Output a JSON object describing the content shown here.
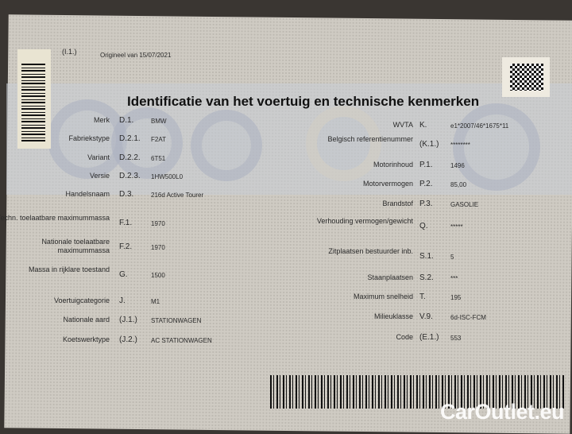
{
  "header": {
    "ref": "(I.1.)",
    "original": "Origineel van 15/07/2021",
    "title": "Identificatie van het voertuig en technische kenmerken"
  },
  "left": [
    {
      "label": "Merk",
      "code": "D.1.",
      "value": "BMW"
    },
    {
      "label": "Fabriekstype",
      "code": "D.2.1.",
      "value": "F2AT"
    },
    {
      "label": "Variant",
      "code": "D.2.2.",
      "value": "6T51"
    },
    {
      "label": "Versie",
      "code": "D.2.3.",
      "value": "1HW500L0"
    },
    {
      "label": "Handelsnaam",
      "code": "D.3.",
      "value": "216d Active Tourer"
    },
    {
      "label": "Techn. toelaatbare maximummassa",
      "code": "F.1.",
      "value": "1970"
    },
    {
      "label": "Nationale toelaatbare maximummassa",
      "code": "F.2.",
      "value": "1970"
    },
    {
      "label": "Massa in rijklare toestand",
      "code": "G.",
      "value": "1500"
    },
    {
      "label": "Voertuigcategorie",
      "code": "J.",
      "value": "M1"
    },
    {
      "label": "Nationale aard",
      "code": "(J.1.)",
      "value": "STATIONWAGEN"
    },
    {
      "label": "Koetswerktype",
      "code": "(J.2.)",
      "value": "AC STATIONWAGEN"
    }
  ],
  "right": [
    {
      "label": "WVTA",
      "code": "K.",
      "value": "e1*2007/46*1675*11"
    },
    {
      "label": "Belgisch referentienummer",
      "code": "(K.1.)",
      "value": "********"
    },
    {
      "label": "Motorinhoud",
      "code": "P.1.",
      "value": "1496"
    },
    {
      "label": "Motorvermogen",
      "code": "P.2.",
      "value": "85,00"
    },
    {
      "label": "Brandstof",
      "code": "P.3.",
      "value": "GASOLIE"
    },
    {
      "label": "Verhouding vermogen/gewicht",
      "code": "Q.",
      "value": "*****"
    },
    {
      "label": "Zitplaatsen bestuurder inb.",
      "code": "S.1.",
      "value": "5"
    },
    {
      "label": "Staanplaatsen",
      "code": "S.2.",
      "value": "***"
    },
    {
      "label": "Maximum snelheid",
      "code": "T.",
      "value": "195"
    },
    {
      "label": "Milieuklasse",
      "code": "V.9.",
      "value": "6d-ISC-FCM"
    },
    {
      "label": "Code",
      "code": "(E.1.)",
      "value": "553"
    }
  ],
  "watermark": "CarOutlet.eu"
}
